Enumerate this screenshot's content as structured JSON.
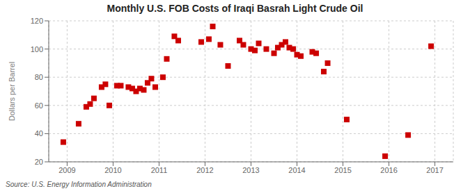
{
  "chart_data": {
    "type": "scatter",
    "title": "Monthly U.S. FOB Costs of Iraqi Basrah Light Crude Oil",
    "ylabel": "Dollars per Barrel",
    "annotations": [
      "Source: U.S. Energy Information Administration"
    ],
    "x": [
      2008.917,
      2009.25,
      2009.417,
      2009.5,
      2009.583,
      2009.75,
      2009.833,
      2009.917,
      2010.083,
      2010.167,
      2010.333,
      2010.417,
      2010.5,
      2010.583,
      2010.667,
      2010.75,
      2010.833,
      2010.917,
      2011.083,
      2011.167,
      2011.333,
      2011.417,
      2011.917,
      2012.083,
      2012.167,
      2012.333,
      2012.5,
      2012.75,
      2012.833,
      2013.0,
      2013.083,
      2013.167,
      2013.333,
      2013.5,
      2013.583,
      2013.667,
      2013.75,
      2013.833,
      2013.917,
      2014.0,
      2014.083,
      2014.333,
      2014.417,
      2014.583,
      2014.667,
      2015.083,
      2015.917,
      2016.417,
      2016.917
    ],
    "values": [
      34,
      47,
      59,
      61,
      65,
      73,
      75,
      60,
      74,
      74,
      73,
      72,
      70,
      72,
      71,
      76,
      79,
      73,
      80,
      93,
      109,
      106,
      105,
      107,
      116,
      103,
      88,
      106,
      103,
      100,
      99,
      104,
      100,
      97,
      101,
      103,
      105,
      101,
      100,
      96,
      95,
      98,
      97,
      84,
      90,
      50,
      24,
      39,
      102
    ],
    "color": "#cc0000",
    "marker": "square",
    "xlim": [
      2008.6,
      2017.4
    ],
    "ylim": [
      20,
      120
    ],
    "xticks": [
      2009,
      2010,
      2011,
      2012,
      2013,
      2014,
      2015,
      2016,
      2017
    ],
    "yticks": [
      20,
      40,
      60,
      80,
      100,
      120
    ],
    "grid": true
  }
}
